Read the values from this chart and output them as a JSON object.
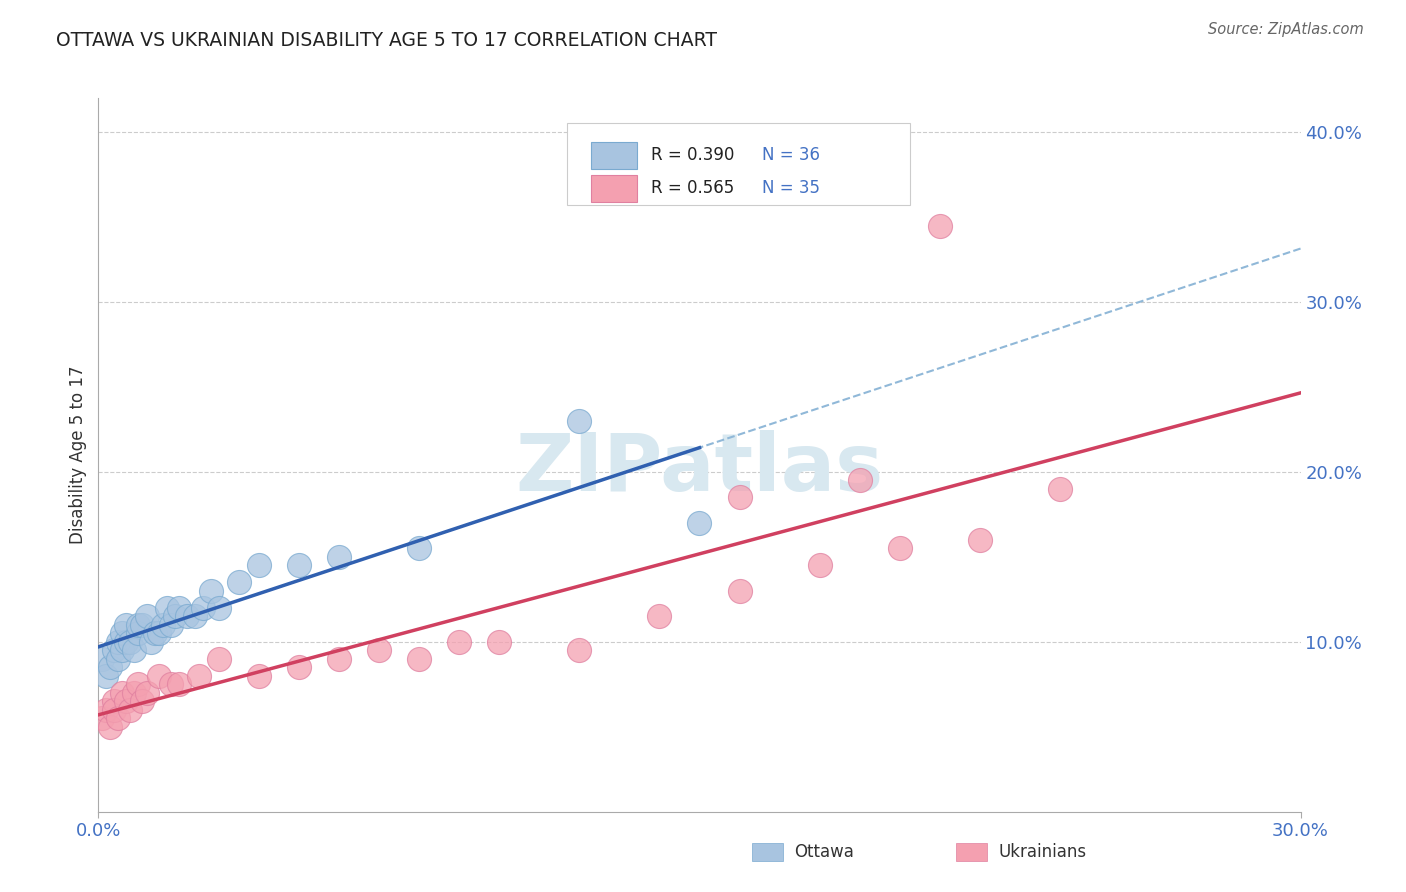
{
  "title": "OTTAWA VS UKRAINIAN DISABILITY AGE 5 TO 17 CORRELATION CHART",
  "source": "Source: ZipAtlas.com",
  "xlabel": "",
  "ylabel": "Disability Age 5 to 17",
  "x_min": 0.0,
  "x_max": 0.3,
  "y_min": 0.0,
  "y_max": 0.42,
  "ottawa_R": 0.39,
  "ottawa_N": 36,
  "ukrainian_R": 0.565,
  "ukrainian_N": 35,
  "ottawa_color": "#a8c4e0",
  "ukrainian_color": "#f4a0b0",
  "ottawa_line_color": "#3060b0",
  "ukrainian_line_color": "#d04060",
  "dashed_line_color": "#90b8d8",
  "legend_text_color": "#4472c4",
  "legend_label_color": "#222222",
  "title_color": "#222222",
  "axis_label_color": "#333333",
  "tick_color": "#4472c4",
  "grid_color": "#cccccc",
  "background_color": "#ffffff",
  "ottawa_x": [
    0.001,
    0.002,
    0.003,
    0.004,
    0.005,
    0.005,
    0.006,
    0.006,
    0.007,
    0.007,
    0.008,
    0.009,
    0.01,
    0.01,
    0.011,
    0.012,
    0.013,
    0.014,
    0.015,
    0.016,
    0.017,
    0.018,
    0.019,
    0.02,
    0.022,
    0.024,
    0.026,
    0.028,
    0.03,
    0.035,
    0.04,
    0.05,
    0.06,
    0.08,
    0.12,
    0.15
  ],
  "ottawa_y": [
    0.09,
    0.08,
    0.085,
    0.095,
    0.09,
    0.1,
    0.095,
    0.105,
    0.1,
    0.11,
    0.1,
    0.095,
    0.105,
    0.11,
    0.11,
    0.115,
    0.1,
    0.105,
    0.105,
    0.11,
    0.12,
    0.11,
    0.115,
    0.12,
    0.115,
    0.115,
    0.12,
    0.13,
    0.12,
    0.135,
    0.145,
    0.145,
    0.15,
    0.155,
    0.23,
    0.17
  ],
  "ukrainian_x": [
    0.001,
    0.002,
    0.003,
    0.004,
    0.004,
    0.005,
    0.006,
    0.007,
    0.008,
    0.009,
    0.01,
    0.011,
    0.012,
    0.015,
    0.018,
    0.02,
    0.025,
    0.03,
    0.04,
    0.05,
    0.06,
    0.07,
    0.08,
    0.09,
    0.1,
    0.12,
    0.14,
    0.16,
    0.18,
    0.2,
    0.22,
    0.24,
    0.16,
    0.19,
    0.21
  ],
  "ukrainian_y": [
    0.055,
    0.06,
    0.05,
    0.065,
    0.06,
    0.055,
    0.07,
    0.065,
    0.06,
    0.07,
    0.075,
    0.065,
    0.07,
    0.08,
    0.075,
    0.075,
    0.08,
    0.09,
    0.08,
    0.085,
    0.09,
    0.095,
    0.09,
    0.1,
    0.1,
    0.095,
    0.115,
    0.13,
    0.145,
    0.155,
    0.16,
    0.19,
    0.185,
    0.195,
    0.345
  ],
  "watermark": "ZIPatlas"
}
